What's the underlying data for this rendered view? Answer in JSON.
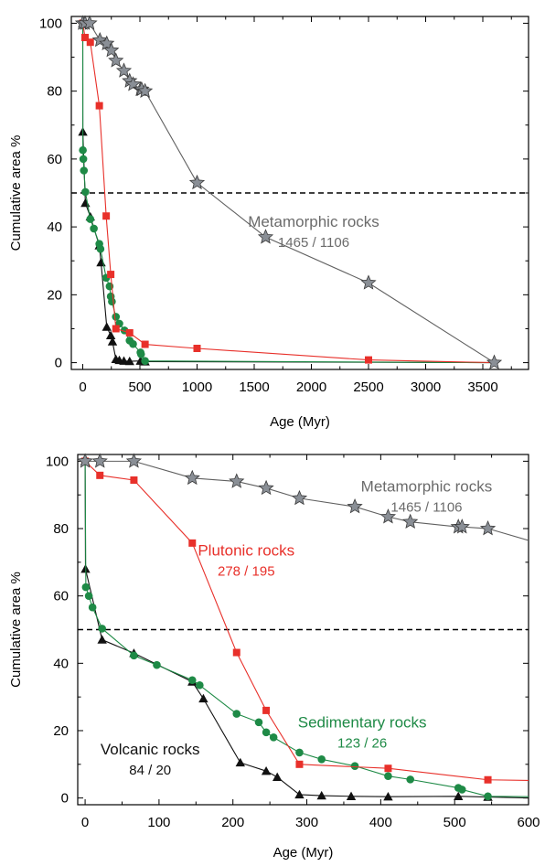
{
  "chart_data": [
    {
      "type": "line",
      "xlabel": "Age (Myr)",
      "ylabel": "Cumulative area %",
      "xlim": [
        -100,
        3900
      ],
      "ylim": [
        -2,
        102
      ],
      "xticks": [
        0,
        500,
        1000,
        1500,
        2000,
        2500,
        3000,
        3500
      ],
      "yticks": [
        0,
        20,
        40,
        60,
        80,
        100
      ],
      "reference_line_y": 50,
      "grid": false,
      "series": [
        {
          "name": "Metamorphic rocks",
          "color": "#606060",
          "marker": "star",
          "points": [
            [
              0,
              100
            ],
            [
              20,
              100
            ],
            [
              60,
              100
            ],
            [
              150,
              95
            ],
            [
              210,
              94
            ],
            [
              250,
              92
            ],
            [
              290,
              89
            ],
            [
              360,
              86
            ],
            [
              410,
              83
            ],
            [
              440,
              82
            ],
            [
              505,
              80.5
            ],
            [
              515,
              80.5
            ],
            [
              545,
              80
            ],
            [
              1000,
              53
            ],
            [
              1600,
              37
            ],
            [
              2500,
              23.5
            ],
            [
              3600,
              0
            ]
          ]
        },
        {
          "name": "Plutonic rocks",
          "color": "#e8302a",
          "marker": "square",
          "points": [
            [
              0,
              100
            ],
            [
              20,
              95.8
            ],
            [
              66,
              94.4
            ],
            [
              145,
              75.7
            ],
            [
              205,
              43.2
            ],
            [
              245,
              26
            ],
            [
              290,
              10
            ],
            [
              410,
              8.8
            ],
            [
              545,
              5.4
            ],
            [
              1000,
              4.2
            ],
            [
              2500,
              0.8
            ],
            [
              3600,
              0
            ]
          ]
        },
        {
          "name": "Sedimentary rocks",
          "color": "#1e8a46",
          "marker": "circle",
          "points": [
            [
              0,
              100
            ],
            [
              1,
              62.6
            ],
            [
              5,
              60
            ],
            [
              10,
              56.6
            ],
            [
              23,
              50.3
            ],
            [
              66,
              42.3
            ],
            [
              97,
              39.5
            ],
            [
              145,
              35
            ],
            [
              155,
              33.5
            ],
            [
              205,
              25
            ],
            [
              235,
              22.5
            ],
            [
              245,
              19.5
            ],
            [
              255,
              18
            ],
            [
              290,
              13.5
            ],
            [
              320,
              11.5
            ],
            [
              365,
              9.5
            ],
            [
              410,
              6.5
            ],
            [
              440,
              5.5
            ],
            [
              505,
              3
            ],
            [
              510,
              2.5
            ],
            [
              545,
              0.5
            ],
            [
              3600,
              0
            ]
          ]
        },
        {
          "name": "Volcanic rocks",
          "color": "#111111",
          "marker": "triangle",
          "points": [
            [
              0,
              100
            ],
            [
              0.5,
              68
            ],
            [
              23,
              47
            ],
            [
              66,
              43
            ],
            [
              145,
              34.5
            ],
            [
              160,
              29.5
            ],
            [
              210,
              10.5
            ],
            [
              245,
              8
            ],
            [
              260,
              6.2
            ],
            [
              290,
              1
            ],
            [
              320,
              0.7
            ],
            [
              360,
              0.5
            ],
            [
              410,
              0.4
            ],
            [
              505,
              0.5
            ],
            [
              545,
              0.3
            ],
            [
              3600,
              0
            ]
          ]
        }
      ],
      "annotations": [
        {
          "series": "Metamorphic rocks",
          "title": "Metamorphic rocks",
          "counts": "1465 / 1106",
          "x": 2020,
          "y": 40
        }
      ]
    },
    {
      "type": "line",
      "xlabel": "Age (Myr)",
      "ylabel": "Cumulative area %",
      "xlim": [
        -10,
        600
      ],
      "ylim": [
        -2,
        102
      ],
      "xticks": [
        0,
        100,
        200,
        300,
        400,
        500,
        600
      ],
      "yticks": [
        0,
        20,
        40,
        60,
        80,
        100
      ],
      "reference_line_y": 50,
      "grid": false,
      "series": [
        {
          "name": "Metamorphic rocks",
          "color": "#606060",
          "marker": "star",
          "points": [
            [
              0,
              100
            ],
            [
              20,
              100
            ],
            [
              66,
              100
            ],
            [
              145,
              95
            ],
            [
              205,
              94
            ],
            [
              245,
              92
            ],
            [
              290,
              89
            ],
            [
              365,
              86.5
            ],
            [
              410,
              83.5
            ],
            [
              440,
              82
            ],
            [
              505,
              80.5
            ],
            [
              510,
              80.5
            ],
            [
              545,
              80
            ],
            [
              600,
              76.5
            ]
          ]
        },
        {
          "name": "Plutonic rocks",
          "color": "#e8302a",
          "marker": "square",
          "points": [
            [
              0,
              100
            ],
            [
              20,
              95.8
            ],
            [
              66,
              94.4
            ],
            [
              145,
              75.7
            ],
            [
              205,
              43.2
            ],
            [
              245,
              26
            ],
            [
              290,
              10
            ],
            [
              410,
              8.8
            ],
            [
              545,
              5.4
            ],
            [
              600,
              5.2
            ]
          ]
        },
        {
          "name": "Sedimentary rocks",
          "color": "#1e8a46",
          "marker": "circle",
          "points": [
            [
              0,
              100
            ],
            [
              1,
              62.6
            ],
            [
              5,
              60
            ],
            [
              10,
              56.6
            ],
            [
              23,
              50.3
            ],
            [
              66,
              42.3
            ],
            [
              97,
              39.5
            ],
            [
              145,
              35
            ],
            [
              155,
              33.5
            ],
            [
              205,
              25
            ],
            [
              235,
              22.5
            ],
            [
              245,
              19.5
            ],
            [
              255,
              18
            ],
            [
              290,
              13.5
            ],
            [
              320,
              11.5
            ],
            [
              365,
              9.5
            ],
            [
              410,
              6.5
            ],
            [
              440,
              5.5
            ],
            [
              505,
              3
            ],
            [
              510,
              2.5
            ],
            [
              545,
              0.5
            ],
            [
              600,
              0.4
            ]
          ]
        },
        {
          "name": "Volcanic rocks",
          "color": "#111111",
          "marker": "triangle",
          "points": [
            [
              0,
              100
            ],
            [
              0.5,
              68
            ],
            [
              23,
              47
            ],
            [
              66,
              43
            ],
            [
              145,
              34.5
            ],
            [
              160,
              29.5
            ],
            [
              210,
              10.5
            ],
            [
              245,
              8
            ],
            [
              260,
              6.2
            ],
            [
              290,
              1
            ],
            [
              320,
              0.7
            ],
            [
              360,
              0.5
            ],
            [
              410,
              0.4
            ],
            [
              505,
              0.5
            ],
            [
              545,
              0.3
            ],
            [
              600,
              0
            ]
          ]
        }
      ],
      "annotations": [
        {
          "series": "Metamorphic rocks",
          "title": "Metamorphic rocks",
          "counts": "1465 / 1106",
          "x": 462,
          "y": 91
        },
        {
          "series": "Plutonic rocks",
          "title": "Plutonic rocks",
          "counts": "278 / 195",
          "x": 218,
          "y": 72
        },
        {
          "series": "Sedimentary rocks",
          "title": "Sedimentary rocks",
          "counts": "123 / 26",
          "x": 375,
          "y": 21
        },
        {
          "series": "Volcanic rocks",
          "title": "Volcanic rocks",
          "counts": "84 / 20",
          "x": 88,
          "y": 13
        }
      ]
    }
  ]
}
